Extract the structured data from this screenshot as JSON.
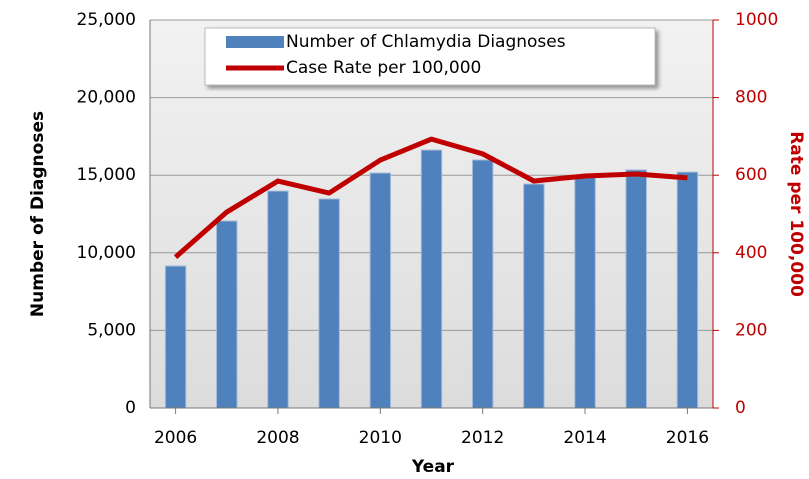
{
  "chart_data": {
    "type": "bar_line",
    "x": [
      2006,
      2007,
      2008,
      2009,
      2010,
      2011,
      2012,
      2013,
      2014,
      2015,
      2016
    ],
    "xlim": [
      2005.5,
      2016.5
    ],
    "xticks": [
      2006,
      2008,
      2010,
      2012,
      2014,
      2016
    ],
    "x_label": "Year",
    "y_label": "Number of Diagnoses",
    "y2_label": "Rate per 100,000",
    "ylim": [
      0,
      25000
    ],
    "yticks": [
      0,
      {
        "value": 5000,
        "label": "5,000"
      },
      {
        "value": 10000,
        "label": "10,000"
      },
      {
        "value": 15000,
        "label": "15,000"
      },
      {
        "value": 20000,
        "label": "20,000"
      },
      {
        "value": 25000,
        "label": "25,000"
      }
    ],
    "y2lim": [
      0,
      1000
    ],
    "y2ticks": [
      0,
      200,
      400,
      600,
      800,
      1000
    ],
    "grid": true,
    "series": [
      {
        "name": "Number of Chlamydia Diagnoses",
        "type": "bar",
        "color": "#4f81bd",
        "values": [
          9150,
          12050,
          13980,
          13470,
          15140,
          16620,
          15980,
          14430,
          14900,
          15340,
          15200
        ]
      },
      {
        "name": "Case Rate per 100,000",
        "type": "line",
        "axis": "y2",
        "color": "#c00000",
        "values": [
          389,
          505,
          585,
          554,
          639,
          693,
          655,
          585,
          598,
          603,
          593
        ]
      }
    ]
  }
}
